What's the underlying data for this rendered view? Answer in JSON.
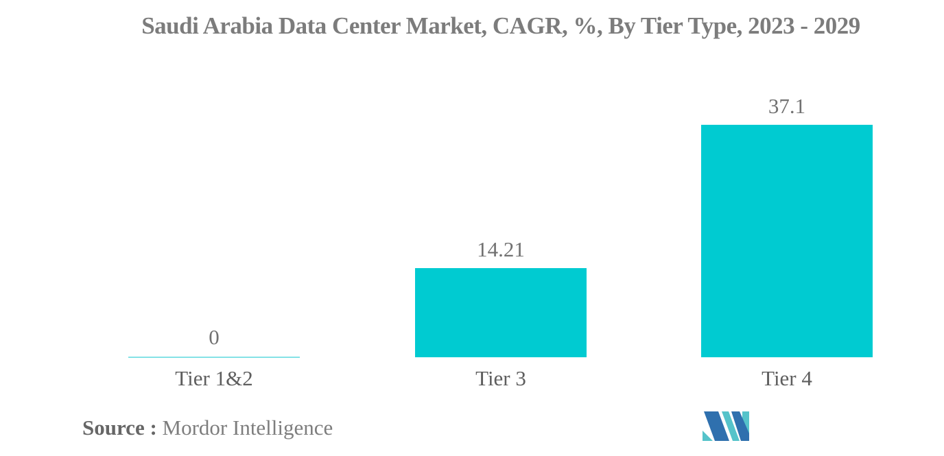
{
  "chart_data": {
    "type": "bar",
    "title": "Saudi Arabia Data Center Market, CAGR, %, By Tier Type, 2023 - 2029",
    "categories": [
      "Tier 1&2",
      "Tier 3",
      "Tier 4"
    ],
    "values": [
      0,
      14.21,
      37.1
    ],
    "value_labels": [
      "0",
      "14.21",
      "37.1"
    ],
    "xlabel": "",
    "ylabel": "",
    "ylim": [
      0,
      40
    ],
    "grid": "off",
    "legend": "none",
    "bar_color": "#00CBD1",
    "zero_line_color": "#84E2E6"
  },
  "source": {
    "label": "Source :",
    "text": "Mordor Intelligence"
  },
  "logo": {
    "name": "mordor-intelligence-logo"
  },
  "colors": {
    "bar": "#00CBD1",
    "zero_line": "#84E2E6",
    "title": "#7C7C7C",
    "value_label": "#717171",
    "category_label": "#5E5E5E",
    "source_label": "#666666",
    "source_text": "#7D7D7D",
    "logo_blue": "#2F70AE",
    "logo_teal": "#55C3CA"
  }
}
